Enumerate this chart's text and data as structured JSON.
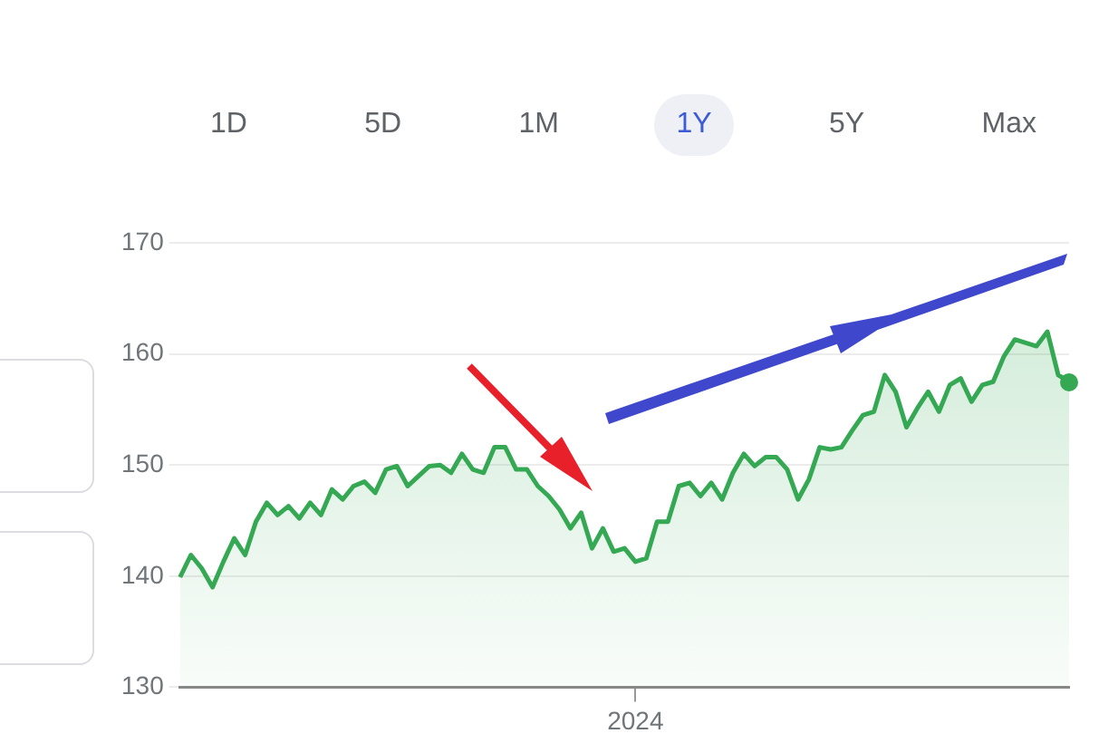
{
  "chart_data": {
    "type": "area",
    "annotations": [
      "1D",
      "5D",
      "1M",
      "1Y",
      "5Y",
      "Max"
    ],
    "categories": [
      null,
      null,
      null,
      null,
      null,
      null,
      null,
      null,
      null,
      null,
      null,
      null,
      null,
      null,
      null,
      null,
      null,
      null,
      null,
      null,
      null,
      null,
      null,
      null,
      null,
      null,
      null,
      null,
      null,
      null,
      null,
      null,
      null,
      null,
      null,
      null,
      null,
      null,
      null,
      null,
      null,
      null,
      "2024",
      null,
      null,
      null,
      null,
      null,
      null,
      null,
      null,
      null,
      null,
      null,
      null,
      null,
      null,
      null,
      null,
      null,
      null,
      null,
      null,
      null,
      null,
      null,
      null,
      null,
      null,
      null,
      null,
      null,
      null,
      null,
      null,
      null,
      null,
      null,
      null,
      null,
      null,
      null,
      null
    ],
    "series": [
      {
        "color": "#34a853",
        "values": [
          139.9,
          141.9,
          140.7,
          139.0,
          141.3,
          143.4,
          141.9,
          144.9,
          146.6,
          145.5,
          146.3,
          145.2,
          146.6,
          145.5,
          147.8,
          146.9,
          148.1,
          148.5,
          147.5,
          149.6,
          149.9,
          148.1,
          149.0,
          149.9,
          150.0,
          149.3,
          151.0,
          149.6,
          149.3,
          151.6,
          151.6,
          149.6,
          149.6,
          148.1,
          147.2,
          146.0,
          144.3,
          145.7,
          142.5,
          144.3,
          142.2,
          142.5,
          141.3,
          141.6,
          144.9,
          144.9,
          148.1,
          148.4,
          147.2,
          148.4,
          146.9,
          149.3,
          151.0,
          149.9,
          150.7,
          150.7,
          149.6,
          146.9,
          148.7,
          151.6,
          151.4,
          151.6,
          153.1,
          154.5,
          154.8,
          158.1,
          156.6,
          153.4,
          155.1,
          156.6,
          154.8,
          157.2,
          157.8,
          155.7,
          157.2,
          157.5,
          159.8,
          161.3,
          161.0,
          160.7,
          162.0,
          158.1,
          157.5
        ]
      }
    ],
    "ylim": [
      130,
      170
    ],
    "yticks": [
      130,
      140,
      150,
      160,
      170
    ],
    "grid": "y"
  }
}
